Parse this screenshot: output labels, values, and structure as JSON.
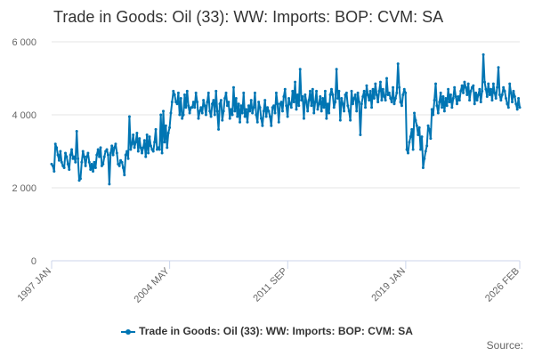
{
  "title": "Trade in Goods: Oil (33): WW: Imports: BOP: CVM: SA",
  "credits": "Source:",
  "colors": {
    "series": "#0075B3",
    "grid": "#e6e6e6",
    "axis": "#ccd6eb",
    "text": "#666666"
  },
  "chart_data": {
    "type": "line",
    "title": "Trade in Goods: Oil (33): WW: Imports: BOP: CVM: SA",
    "xlabel": "",
    "ylabel": "",
    "ylim": [
      0,
      6000
    ],
    "y_ticks": [
      "0",
      "2 000",
      "4 000",
      "6 000"
    ],
    "y_tick_values": [
      0,
      2000,
      4000,
      6000
    ],
    "x_range": [
      "1997 JAN",
      "2026 FEB"
    ],
    "x_ticks": [
      "1997 JAN",
      "2004 MAY",
      "2011 SEP",
      "2019 JAN",
      "2026 FEB"
    ],
    "grid": true,
    "legend_position": "bottom",
    "frequency": "monthly",
    "series": [
      {
        "name": "Trade in Goods: Oil (33): WW: Imports: BOP: CVM: SA",
        "start": "1997 JAN",
        "values": [
          2650,
          2600,
          2450,
          3200,
          3100,
          2900,
          2750,
          3000,
          2700,
          2600,
          2550,
          2950,
          2850,
          2650,
          2500,
          2900,
          3050,
          2800,
          2850,
          2700,
          3550,
          2800,
          2200,
          2250,
          2700,
          3000,
          2850,
          2600,
          2850,
          2950,
          2700,
          2500,
          2650,
          2450,
          2700,
          2550,
          2900,
          3050,
          2850,
          3100,
          2600,
          2650,
          2850,
          3000,
          3050,
          2900,
          2100,
          2950,
          3150,
          2900,
          3100,
          3200,
          2950,
          2650,
          2600,
          2750,
          2700,
          2550,
          2350,
          2900,
          3000,
          2800,
          3950,
          3050,
          3200,
          3450,
          3100,
          3250,
          3500,
          3000,
          3350,
          3100,
          2950,
          3100,
          3300,
          2850,
          3450,
          2950,
          3400,
          3150,
          3050,
          3000,
          3250,
          3600,
          3050,
          3100,
          3050,
          4000,
          2950,
          4100,
          3250,
          3700,
          3100,
          3500,
          3650,
          4050,
          4350,
          4650,
          4550,
          4350,
          4300,
          4600,
          4000,
          4450,
          3900,
          4000,
          4550,
          4200,
          4650,
          4250,
          4050,
          4200,
          4200,
          4350,
          4200,
          4600,
          4350,
          3900,
          4100,
          4200,
          4050,
          4400,
          4250,
          4000,
          4350,
          4600,
          4100,
          3950,
          4300,
          4400,
          4000,
          4650,
          4100,
          3600,
          4300,
          4400,
          3850,
          4100,
          4450,
          4600,
          4250,
          4350,
          3900,
          4150,
          4000,
          4750,
          4100,
          4450,
          3950,
          4300,
          3800,
          4250,
          4050,
          4600,
          3950,
          4150,
          3800,
          4250,
          4100,
          4400,
          4050,
          4200,
          4600,
          4000,
          3800,
          4350,
          4200,
          3900,
          3700,
          4100,
          4400,
          3950,
          4200,
          4100,
          3950,
          3700,
          4200,
          4250,
          4050,
          4600,
          4300,
          3800,
          4300,
          4350,
          4100,
          4500,
          4700,
          4250,
          3950,
          4450,
          4300,
          4200,
          4650,
          4350,
          4900,
          4150,
          4550,
          4250,
          5250,
          4400,
          4500,
          3900,
          4550,
          4350,
          4100,
          4400,
          4650,
          4250,
          4700,
          4050,
          4350,
          4650,
          4150,
          4300,
          4500,
          4100,
          4450,
          4200,
          4650,
          3900,
          4300,
          4050,
          4550,
          4700,
          4550,
          4200,
          4350,
          5250,
          4450,
          4650,
          3850,
          4450,
          4300,
          4100,
          4550,
          4600,
          4250,
          4100,
          3850,
          4650,
          4300,
          4450,
          4550,
          4100,
          4600,
          4350,
          3450,
          4300,
          4500,
          4650,
          4200,
          4800,
          4550,
          4400,
          4650,
          4200,
          4700,
          4450,
          4850,
          4550,
          4350,
          4650,
          4900,
          4400,
          4700,
          4500,
          4400,
          5000,
          4550,
          4600,
          4450,
          4350,
          4750,
          4300,
          4450,
          4600,
          5400,
          4750,
          4350,
          4250,
          4550,
          4700,
          4600,
          3050,
          2950,
          3250,
          3400,
          3600,
          3050,
          4050,
          3850,
          3700,
          3450,
          3650,
          3050,
          3400,
          2550,
          2800,
          3000,
          3150,
          3700,
          3600,
          3350,
          4150,
          4000,
          4400,
          4850,
          4250,
          4050,
          4350,
          4600,
          4200,
          4500,
          4100,
          4450,
          4250,
          4700,
          4350,
          4550,
          4200,
          4450,
          4750,
          4500,
          4300,
          4500,
          4400,
          4650,
          4800,
          4600,
          4900,
          4750,
          4550,
          4850,
          4400,
          4650,
          4750,
          4800,
          4300,
          4600,
          4400,
          4550,
          4700,
          4350,
          4650,
          5650,
          4900,
          4700,
          4500,
          4850,
          4550,
          4700,
          4400,
          4850,
          4600,
          4450,
          4750,
          5300,
          4550,
          4400,
          4550,
          4750,
          4650,
          4450,
          4300,
          4200,
          4850,
          4600,
          4350,
          4650,
          4500,
          4300,
          4150,
          4450,
          4200
        ]
      }
    ]
  }
}
